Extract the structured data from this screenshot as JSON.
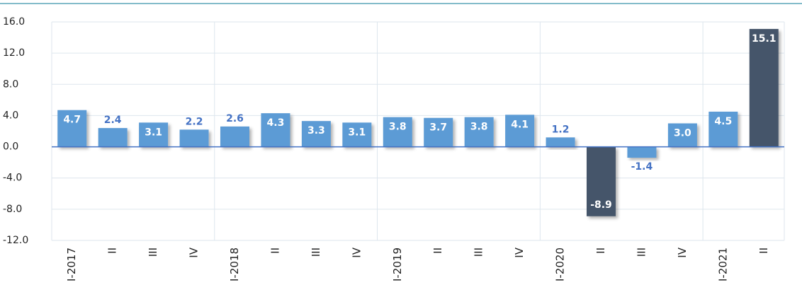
{
  "chart_data": {
    "type": "bar",
    "categories": [
      "I-2017",
      "II",
      "III",
      "IV",
      "I-2018",
      "II",
      "III",
      "IV",
      "I-2019",
      "II",
      "III",
      "IV",
      "I-2020",
      "II",
      "III",
      "IV",
      "I-2021",
      "II"
    ],
    "values": [
      4.7,
      2.4,
      3.1,
      2.2,
      2.6,
      4.3,
      3.3,
      3.1,
      3.8,
      3.7,
      3.8,
      4.1,
      1.2,
      -8.9,
      -1.4,
      3.0,
      4.5,
      15.1
    ],
    "value_labels": [
      "4.7",
      "2.4",
      "3.1",
      "2.2",
      "2.6",
      "4.3",
      "3.3",
      "3.1",
      "3.8",
      "3.7",
      "3.8",
      "4.1",
      "1.2",
      "-8.9",
      "-1.4",
      "3.0",
      "4.5",
      "15.1"
    ],
    "colors": [
      "#5b9bd5",
      "#5b9bd5",
      "#5b9bd5",
      "#5b9bd5",
      "#5b9bd5",
      "#5b9bd5",
      "#5b9bd5",
      "#5b9bd5",
      "#5b9bd5",
      "#5b9bd5",
      "#5b9bd5",
      "#5b9bd5",
      "#5b9bd5",
      "#44546a",
      "#5b9bd5",
      "#5b9bd5",
      "#5b9bd5",
      "#44546a"
    ],
    "ylim": [
      -12,
      16
    ],
    "yticks": [
      {
        "value": -12,
        "label": "-12.0"
      },
      {
        "value": -8,
        "label": "-8.0"
      },
      {
        "value": -4,
        "label": "-4.0"
      },
      {
        "value": 0,
        "label": "0.0"
      },
      {
        "value": 4,
        "label": "4.0"
      },
      {
        "value": 8,
        "label": "8.0"
      },
      {
        "value": 12,
        "label": "12.0"
      },
      {
        "value": 16,
        "label": "16.0"
      }
    ],
    "grid": true
  }
}
